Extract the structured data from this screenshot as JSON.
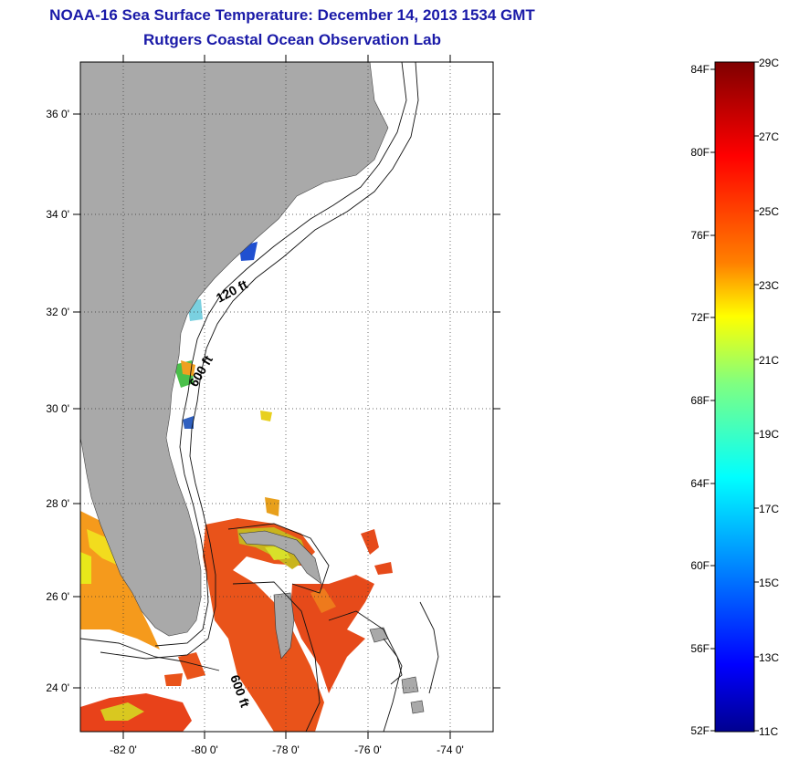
{
  "header": {
    "title": "NOAA-16 Sea Surface Temperature:  December 14, 2013 1534 GMT",
    "subtitle": "Rutgers Coastal Ocean Observation Lab"
  },
  "map": {
    "lat_ticks": [
      "36 0'",
      "34 0'",
      "32 0'",
      "30 0'",
      "28 0'",
      "26 0'",
      "24 0'"
    ],
    "lon_ticks": [
      "-82 0'",
      "-80 0'",
      "-78 0'",
      "-76 0'",
      "-74 0'"
    ],
    "contour_labels": [
      "120 ft",
      "600 ft",
      "600 ft"
    ],
    "colors": {
      "land": "#a9a9a9",
      "ocean": "#ffffff"
    }
  },
  "colorbar": {
    "fahrenheit": [
      "84F",
      "80F",
      "76F",
      "72F",
      "68F",
      "64F",
      "60F",
      "56F",
      "52F"
    ],
    "celsius": [
      "29C",
      "27C",
      "25C",
      "23C",
      "21C",
      "19C",
      "17C",
      "15C",
      "13C",
      "11C"
    ],
    "colors": [
      "#7f0000",
      "#ff0000",
      "#ff8000",
      "#ffff00",
      "#80ff80",
      "#00ffff",
      "#0080ff",
      "#0000ff",
      "#00008f"
    ]
  }
}
